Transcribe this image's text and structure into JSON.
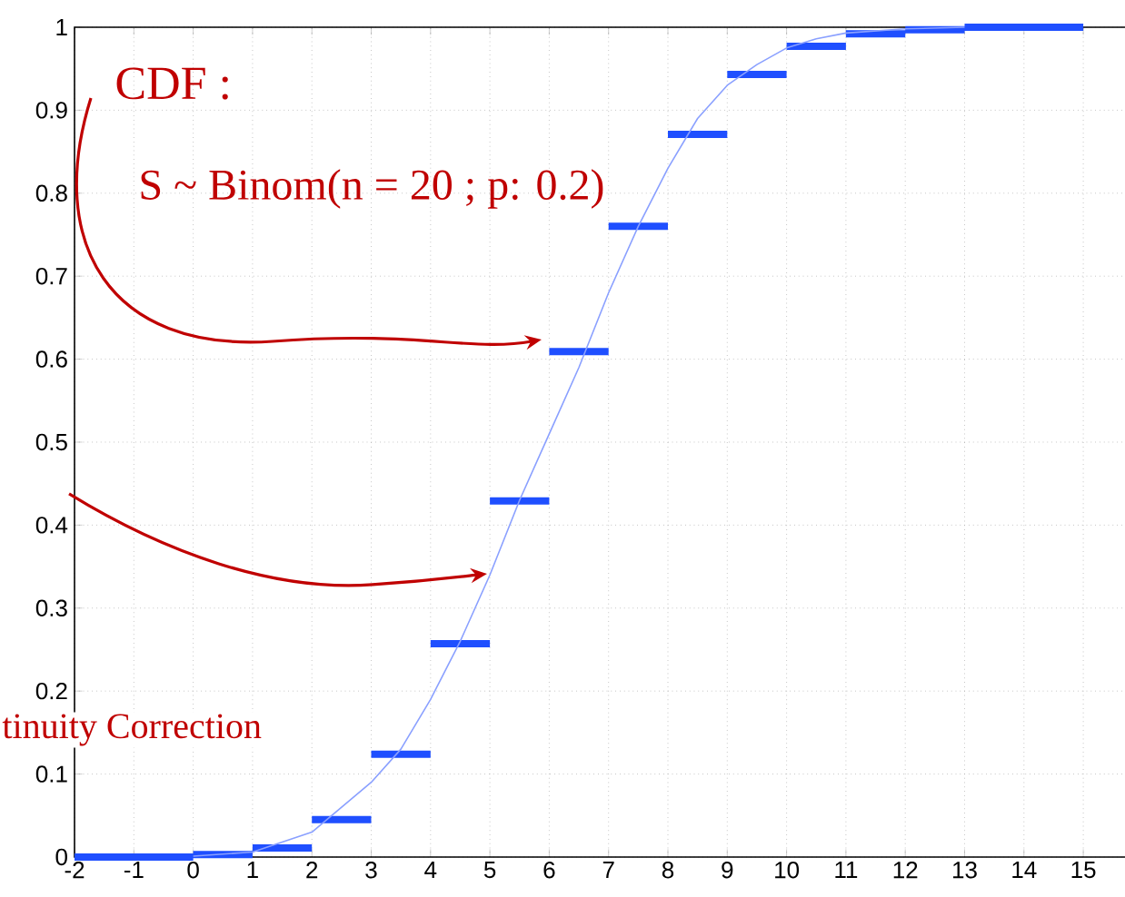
{
  "chart_data": {
    "type": "step",
    "xlim": [
      -2,
      16
    ],
    "ylim": [
      0,
      1
    ],
    "xticks": [
      -2,
      -1,
      0,
      1,
      2,
      3,
      4,
      5,
      6,
      7,
      8,
      9,
      10,
      11,
      12,
      13,
      14,
      15
    ],
    "yticks": [
      0,
      0.1,
      0.2,
      0.3,
      0.4,
      0.5,
      0.6,
      0.7,
      0.8,
      0.9,
      1
    ],
    "grid": true,
    "annotations": [
      "CDF :",
      "S ~ Binom(n = 20 ; p: 0.2)",
      "tinuity Correction"
    ],
    "series": [
      {
        "color": "#1f4fff",
        "x": [
          -2,
          -1,
          0,
          1,
          2,
          3,
          4,
          5,
          6,
          7,
          8,
          9,
          10,
          11,
          12,
          13,
          14,
          15
        ],
        "values": [
          0,
          0,
          0.003,
          0.011,
          0.045,
          0.124,
          0.257,
          0.429,
          0.609,
          0.76,
          0.871,
          0.943,
          0.977,
          0.992,
          0.997,
          1,
          1,
          1
        ]
      },
      {
        "type": "line",
        "color": "#8aa0ff",
        "x": [
          0,
          1,
          2,
          3,
          3.5,
          4,
          4.5,
          5,
          5.5,
          6,
          6.5,
          7,
          7.5,
          8,
          8.5,
          9,
          9.5,
          10,
          10.5,
          11,
          12,
          13
        ],
        "values": [
          0.001,
          0.006,
          0.03,
          0.09,
          0.13,
          0.19,
          0.26,
          0.34,
          0.43,
          0.51,
          0.59,
          0.68,
          0.76,
          0.83,
          0.89,
          0.93,
          0.955,
          0.975,
          0.986,
          0.993,
          0.998,
          1
        ]
      }
    ]
  }
}
